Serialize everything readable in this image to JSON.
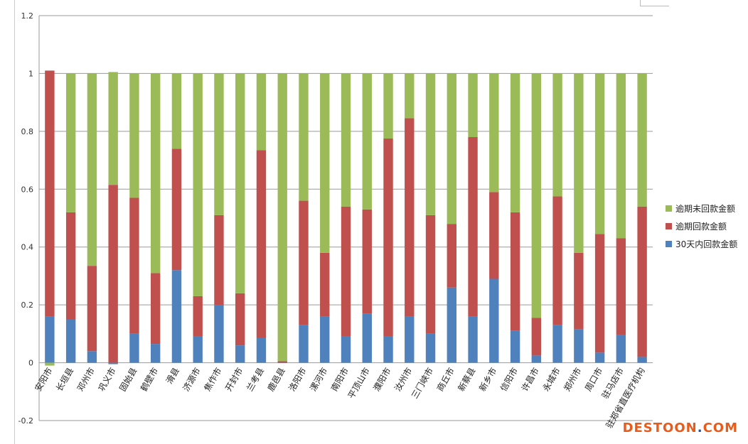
{
  "chart_data": {
    "type": "bar",
    "stacked": true,
    "ylim": [
      -0.2,
      1.2
    ],
    "yticks": [
      "1.2",
      "1",
      "0.8",
      "0.6",
      "0.4",
      "0.2",
      "0",
      "-0.2"
    ],
    "grid": true,
    "legend_position": "right",
    "categories": [
      "安阳市",
      "长垣县",
      "邓州市",
      "巩义市",
      "固始县",
      "鹤壁市",
      "滑县",
      "济源市",
      "焦作市",
      "开封市",
      "兰考县",
      "鹿邑县",
      "洛阳市",
      "漯河市",
      "南阳市",
      "平顶山市",
      "濮阳市",
      "汝州市",
      "三门峡市",
      "商丘市",
      "新蔡县",
      "新乡市",
      "信阳市",
      "许昌市",
      "永城市",
      "郑州市",
      "周口市",
      "驻马店市",
      "驻郑省直医疗机构"
    ],
    "series": [
      {
        "name": "30天内回款金额",
        "color": "#4f81bd",
        "values": [
          0.16,
          0.15,
          0.04,
          -0.005,
          0.1,
          0.065,
          0.32,
          0.09,
          0.2,
          0.06,
          0.085,
          0.0,
          0.13,
          0.16,
          0.09,
          0.17,
          0.09,
          0.16,
          0.1,
          0.26,
          0.16,
          0.29,
          0.11,
          0.025,
          0.13,
          0.115,
          0.035,
          0.095,
          0.02
        ]
      },
      {
        "name": "逾期回款金额",
        "color": "#c0504d",
        "values": [
          0.85,
          0.37,
          0.295,
          0.615,
          0.47,
          0.245,
          0.42,
          0.14,
          0.31,
          0.18,
          0.65,
          0.005,
          0.43,
          0.22,
          0.45,
          0.36,
          0.685,
          0.685,
          0.41,
          0.22,
          0.62,
          0.3,
          0.41,
          0.13,
          0.445,
          0.265,
          0.41,
          0.335,
          0.52
        ]
      },
      {
        "name": "逾期未回款金额",
        "color": "#9bbb59",
        "values": [
          -0.01,
          0.48,
          0.665,
          0.39,
          0.43,
          0.69,
          0.26,
          0.77,
          0.49,
          0.76,
          0.265,
          0.995,
          0.44,
          0.62,
          0.46,
          0.47,
          0.225,
          0.155,
          0.49,
          0.52,
          0.22,
          0.41,
          0.48,
          0.845,
          0.425,
          0.62,
          0.555,
          0.57,
          0.46
        ]
      }
    ],
    "legend_order": [
      "逾期未回款金额",
      "逾期回款金额",
      "30天内回款金额"
    ]
  },
  "watermark": {
    "main": "DESTOON",
    "dot": ".",
    "tail": "COM"
  }
}
